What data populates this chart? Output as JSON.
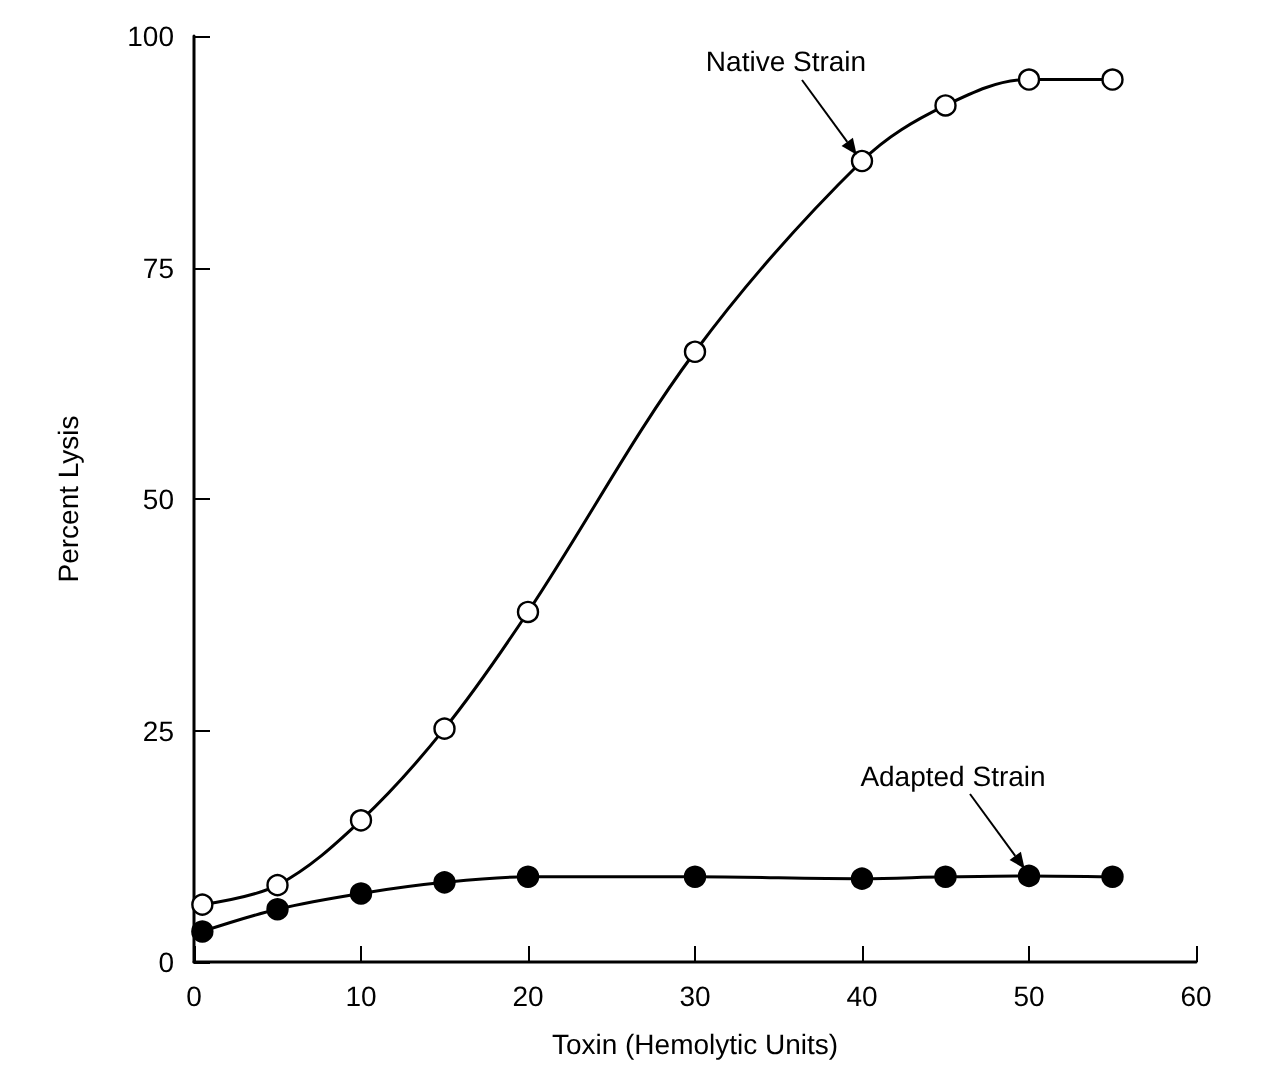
{
  "chart_data": {
    "type": "line",
    "xlabel": "Toxin (Hemolytic Units)",
    "ylabel": "Percent Lysis",
    "xlim": [
      0,
      60
    ],
    "xticks": [
      0,
      10,
      20,
      30,
      40,
      50,
      60
    ],
    "ylim": [
      0,
      100
    ],
    "yticks": [
      0,
      25,
      50,
      75,
      100
    ],
    "grid": false,
    "legend": false,
    "marker": "circle",
    "line_style": "solid",
    "series": [
      {
        "name": "Native Strain",
        "color": "#ffffff",
        "x": [
          0.5,
          5,
          10,
          15,
          20,
          30,
          40,
          45,
          50,
          55
        ],
        "values": [
          6.2,
          8.3,
          15.3,
          25.2,
          37.8,
          65.9,
          86.5,
          92.5,
          95.3,
          95.3
        ]
      },
      {
        "name": "Adapted Strain",
        "color": "#000000",
        "x": [
          0.5,
          5,
          10,
          15,
          20,
          30,
          40,
          45,
          50,
          55
        ],
        "values": [
          3.3,
          5.7,
          7.4,
          8.6,
          9.2,
          9.2,
          9.0,
          9.2,
          9.3,
          9.2
        ]
      }
    ]
  }
}
